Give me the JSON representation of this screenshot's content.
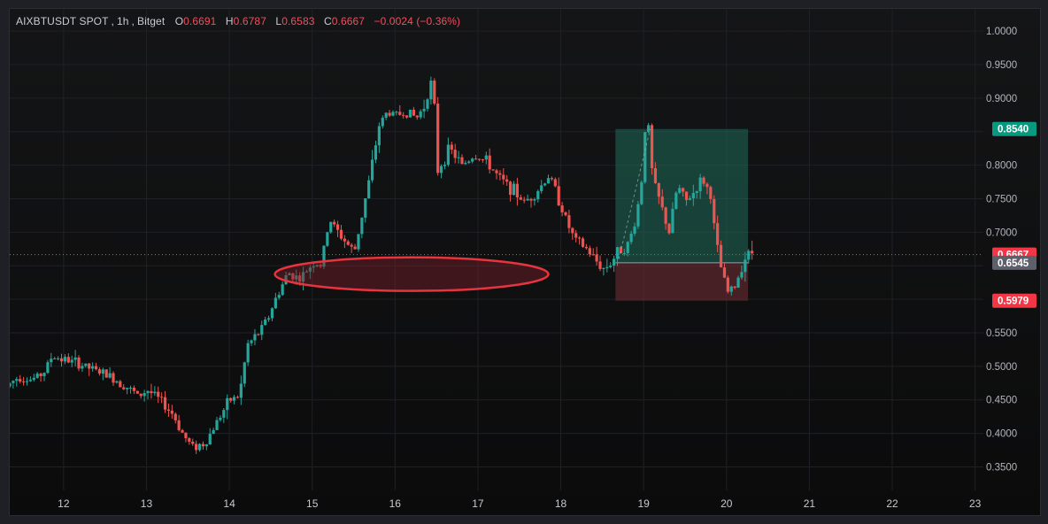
{
  "header": {
    "symbol": "AIXBTUSDT SPOT",
    "interval": "1h",
    "exchange": "Bitget",
    "open_label": "O",
    "open": "0.6691",
    "high_label": "H",
    "high": "0.6787",
    "low_label": "L",
    "low": "0.6583",
    "close_label": "C",
    "close": "0.6667",
    "change": "−0.0024 (−0.36%)"
  },
  "colors": {
    "up": "#26a69a",
    "down": "#ef5350",
    "profit_zone": "#1f6b5a",
    "loss_zone": "#6b2b33",
    "current_price": "#ef5350",
    "ellipse": "#e8343f"
  },
  "chart_data": {
    "type": "candlestick",
    "y_axis": {
      "range": [
        0.315,
        1.02
      ],
      "ticks": [
        "1.0000",
        "0.9500",
        "0.9000",
        "0.8000",
        "0.7500",
        "0.7000",
        "0.5500",
        "0.5000",
        "0.4500",
        "0.4000",
        "0.3500"
      ],
      "position": "right"
    },
    "x_axis": {
      "range": [
        11.35,
        23.1
      ],
      "ticks": [
        "12",
        "13",
        "14",
        "15",
        "16",
        "17",
        "18",
        "19",
        "20",
        "21",
        "22",
        "23"
      ]
    },
    "price_tags": [
      {
        "label": "0.8540",
        "value": 0.854,
        "color": "#089981"
      },
      {
        "label": "0.6667",
        "value": 0.6667,
        "color": "#f23645"
      },
      {
        "label": "0.6545",
        "value": 0.6545,
        "color": "#5d606b"
      },
      {
        "label": "0.5979",
        "value": 0.5979,
        "color": "#f23645"
      }
    ],
    "current_price": 0.6667,
    "annotations": {
      "ellipse": {
        "x_center": 16.2,
        "y_center": 0.6375,
        "x_half_width": 1.65,
        "y_half_height": 0.025
      },
      "long_position": {
        "x_start": 18.66,
        "x_end": 20.26,
        "entry": 0.6545,
        "target": 0.854,
        "stop": 0.5979
      }
    },
    "anchors": [
      [
        11.35,
        0.47
      ],
      [
        11.5,
        0.485
      ],
      [
        11.65,
        0.48
      ],
      [
        11.8,
        0.49
      ],
      [
        11.9,
        0.515
      ],
      [
        12.05,
        0.51
      ],
      [
        12.2,
        0.505
      ],
      [
        12.4,
        0.495
      ],
      [
        12.6,
        0.485
      ],
      [
        12.8,
        0.47
      ],
      [
        12.95,
        0.455
      ],
      [
        13.05,
        0.465
      ],
      [
        13.2,
        0.45
      ],
      [
        13.35,
        0.43
      ],
      [
        13.5,
        0.395
      ],
      [
        13.6,
        0.38
      ],
      [
        13.75,
        0.385
      ],
      [
        13.9,
        0.42
      ],
      [
        14.05,
        0.45
      ],
      [
        14.15,
        0.455
      ],
      [
        14.2,
        0.48
      ],
      [
        14.25,
        0.53
      ],
      [
        14.4,
        0.55
      ],
      [
        14.5,
        0.57
      ],
      [
        14.6,
        0.6
      ],
      [
        14.75,
        0.64
      ],
      [
        14.9,
        0.63
      ],
      [
        15.05,
        0.655
      ],
      [
        15.15,
        0.65
      ],
      [
        15.25,
        0.72
      ],
      [
        15.35,
        0.7
      ],
      [
        15.45,
        0.685
      ],
      [
        15.55,
        0.67
      ],
      [
        15.65,
        0.73
      ],
      [
        15.75,
        0.79
      ],
      [
        15.85,
        0.86
      ],
      [
        15.95,
        0.88
      ],
      [
        16.05,
        0.875
      ],
      [
        16.2,
        0.88
      ],
      [
        16.3,
        0.87
      ],
      [
        16.4,
        0.89
      ],
      [
        16.45,
        0.915
      ],
      [
        16.5,
        0.93
      ],
      [
        16.55,
        0.79
      ],
      [
        16.7,
        0.825
      ],
      [
        16.85,
        0.8
      ],
      [
        17.0,
        0.815
      ],
      [
        17.15,
        0.805
      ],
      [
        17.3,
        0.78
      ],
      [
        17.45,
        0.765
      ],
      [
        17.6,
        0.745
      ],
      [
        17.75,
        0.76
      ],
      [
        17.9,
        0.785
      ],
      [
        18.0,
        0.755
      ],
      [
        18.1,
        0.72
      ],
      [
        18.2,
        0.69
      ],
      [
        18.35,
        0.675
      ],
      [
        18.45,
        0.66
      ],
      [
        18.55,
        0.645
      ],
      [
        18.65,
        0.655
      ],
      [
        18.75,
        0.675
      ],
      [
        18.85,
        0.68
      ],
      [
        18.95,
        0.72
      ],
      [
        19.02,
        0.78
      ],
      [
        19.05,
        0.855
      ],
      [
        19.1,
        0.855
      ],
      [
        19.15,
        0.78
      ],
      [
        19.25,
        0.74
      ],
      [
        19.35,
        0.7
      ],
      [
        19.45,
        0.77
      ],
      [
        19.55,
        0.745
      ],
      [
        19.65,
        0.76
      ],
      [
        19.75,
        0.78
      ],
      [
        19.85,
        0.755
      ],
      [
        19.9,
        0.7
      ],
      [
        19.95,
        0.66
      ],
      [
        20.05,
        0.61
      ],
      [
        20.15,
        0.62
      ],
      [
        20.25,
        0.66
      ],
      [
        20.33,
        0.67
      ]
    ]
  }
}
